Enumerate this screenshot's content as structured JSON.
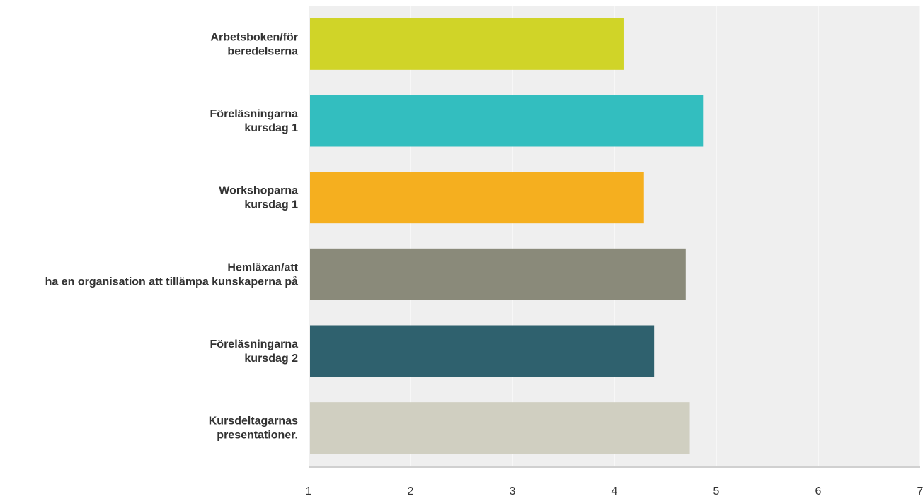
{
  "chart_data": {
    "type": "bar",
    "orientation": "horizontal",
    "title": "",
    "xlabel": "",
    "ylabel": "",
    "xlim": [
      1,
      7
    ],
    "ticks": [
      "1",
      "2",
      "3",
      "4",
      "5",
      "6",
      "7"
    ],
    "grid": true,
    "categories": [
      {
        "lines": [
          "Arbetsboken/för",
          "beredelserna"
        ],
        "value": 4.09,
        "color": "#D0D428"
      },
      {
        "lines": [
          "Föreläsningarna",
          "kursdag 1"
        ],
        "value": 4.87,
        "color": "#33BEBF"
      },
      {
        "lines": [
          "Workshoparna",
          "kursdag 1"
        ],
        "value": 4.29,
        "color": "#F5AF1F"
      },
      {
        "lines": [
          "Hemläxan/att",
          "ha en organisation att tillämpa kunskaperna på"
        ],
        "value": 4.7,
        "color": "#8A8A7A"
      },
      {
        "lines": [
          "Föreläsningarna",
          "kursdag 2"
        ],
        "value": 4.39,
        "color": "#2F616E"
      },
      {
        "lines": [
          "Kursdeltagarnas",
          "presentationer."
        ],
        "value": 4.74,
        "color": "#D0CFC1"
      }
    ],
    "colors": {
      "plot_bg": "#EFEFEF",
      "grid": "#FFFFFF",
      "axis": "#D0D0D0",
      "text": "#333333"
    }
  }
}
